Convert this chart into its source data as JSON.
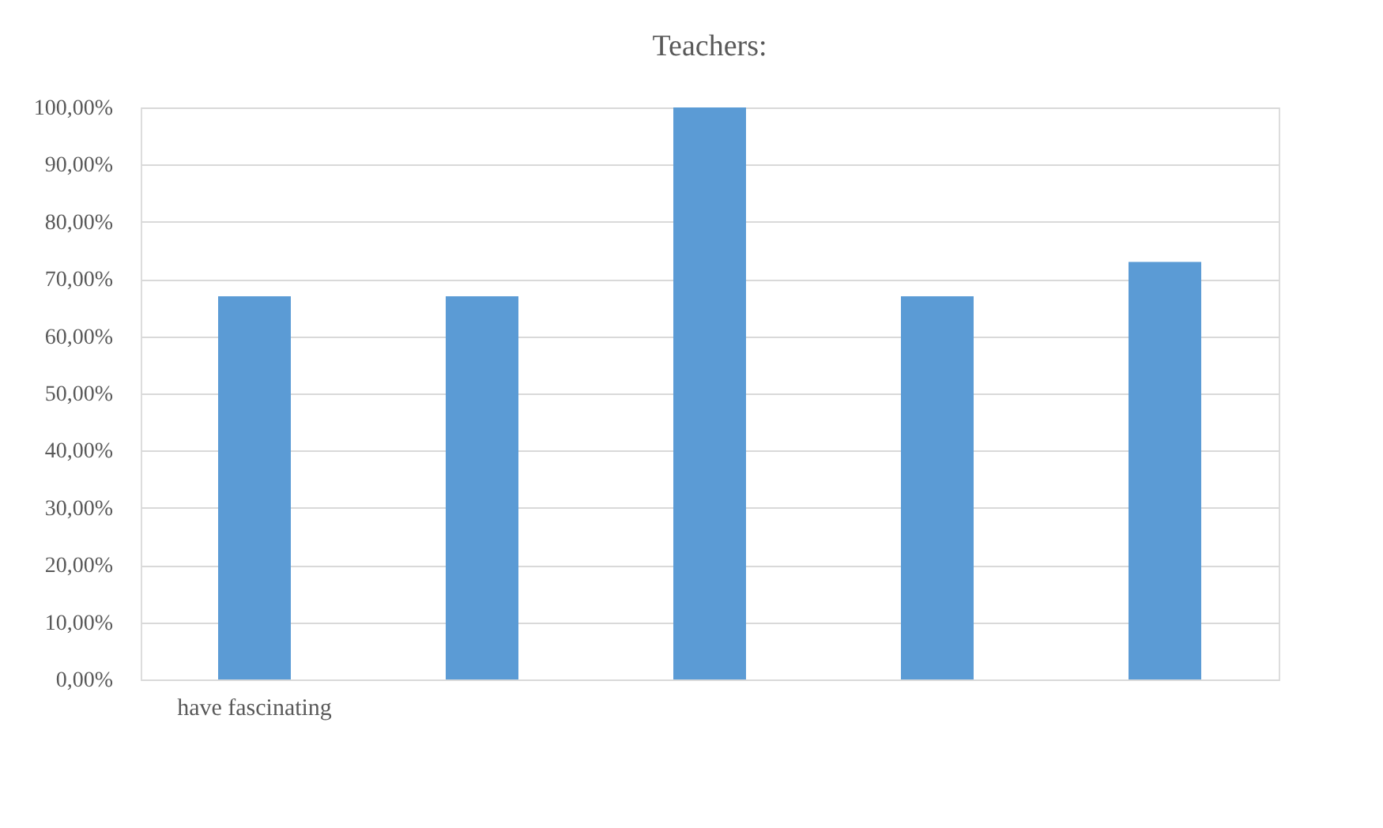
{
  "chart_data": {
    "type": "bar",
    "title": "Teachers:",
    "categories": [
      "have fascinating",
      null,
      null,
      null,
      null
    ],
    "values": [
      67,
      67,
      100,
      67,
      73
    ],
    "color": "#5b9bd5",
    "ylim": [
      0,
      100
    ],
    "yticks": [
      {
        "value": 0,
        "label": "0,00%"
      },
      {
        "value": 10,
        "label": "10,00%"
      },
      {
        "value": 20,
        "label": "20,00%"
      },
      {
        "value": 30,
        "label": "30,00%"
      },
      {
        "value": 40,
        "label": "40,00%"
      },
      {
        "value": 50,
        "label": "50,00%"
      },
      {
        "value": 60,
        "label": "60,00%"
      },
      {
        "value": 70,
        "label": "70,00%"
      },
      {
        "value": 80,
        "label": "80,00%"
      },
      {
        "value": 90,
        "label": "90,00%"
      },
      {
        "value": 100,
        "label": "100,00%"
      }
    ],
    "grid": "y"
  }
}
